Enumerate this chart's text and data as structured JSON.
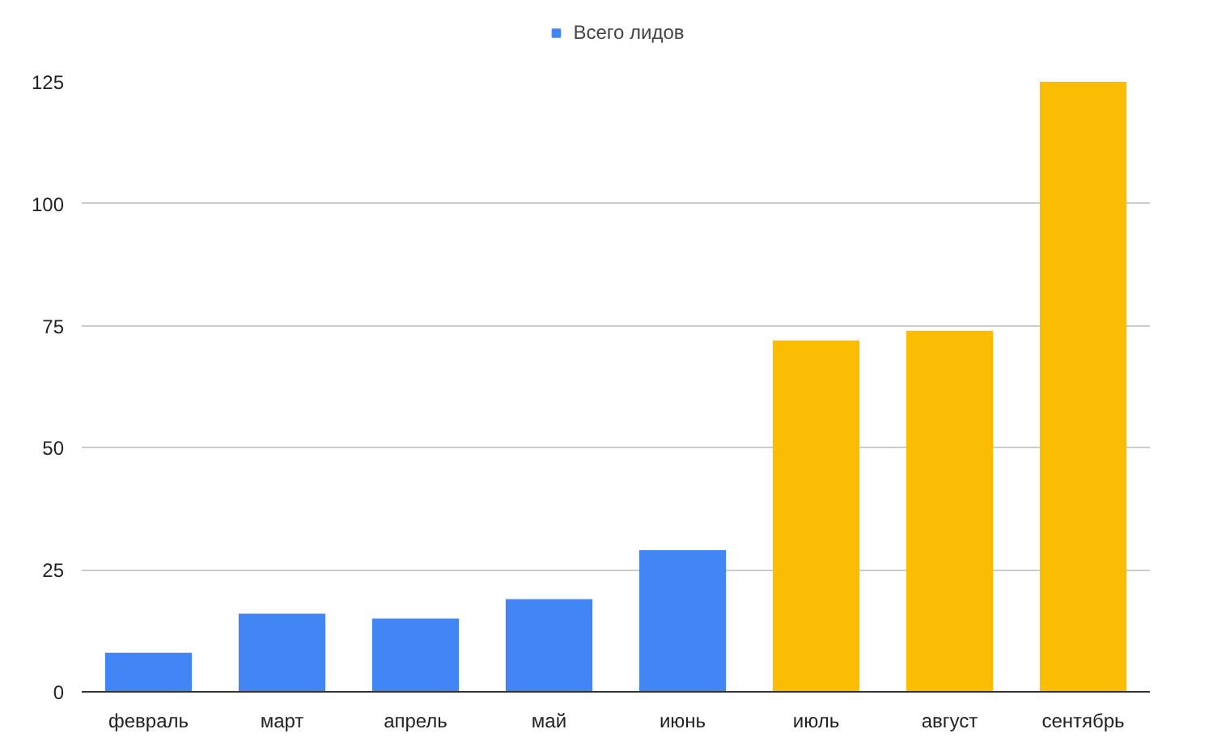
{
  "chart_data": {
    "type": "bar",
    "categories": [
      "февраль",
      "март",
      "апрель",
      "май",
      "июнь",
      "июль",
      "август",
      "сентябрь"
    ],
    "series": [
      {
        "name": "Всего лидов",
        "color": "#4285f4",
        "colors": [
          "#4285f4",
          "#4285f4",
          "#4285f4",
          "#4285f4",
          "#4285f4",
          "#fbbc04",
          "#fbbc04",
          "#fbbc04"
        ],
        "values": [
          8,
          16,
          15,
          19,
          29,
          72,
          74,
          125
        ]
      }
    ],
    "ylim": [
      0,
      125
    ],
    "yticks": [
      0,
      25,
      50,
      75,
      100,
      125
    ],
    "grid": "y",
    "legend": "top"
  }
}
